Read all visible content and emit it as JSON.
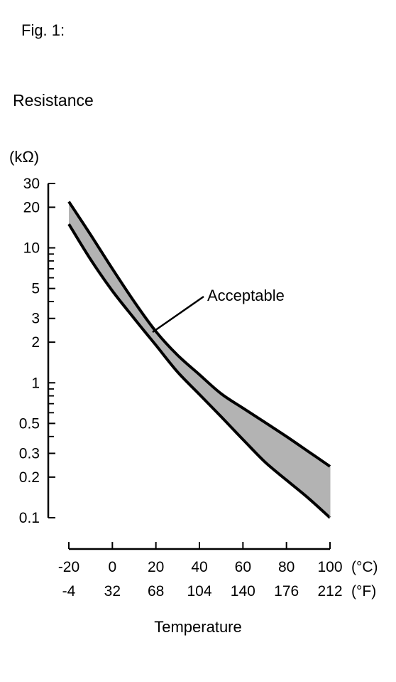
{
  "figure_label": "Fig. 1:",
  "chart_data": {
    "type": "area",
    "title": "Resistance",
    "ylabel": "(kΩ)",
    "xlabel": "Temperature",
    "yscale": "log",
    "ylim": [
      0.1,
      30
    ],
    "xlim": [
      -20,
      100
    ],
    "x_unit_c": "(°C)",
    "x_unit_f": "(°F)",
    "x_ticks_c": [
      "-20",
      "0",
      "20",
      "40",
      "60",
      "80",
      "100"
    ],
    "x_ticks_f": [
      "-4",
      "32",
      "68",
      "104",
      "140",
      "176",
      "212"
    ],
    "y_ticks": [
      "0.1",
      "0.2",
      "0.3",
      "0.5",
      "1",
      "2",
      "3",
      "5",
      "10",
      "20",
      "30"
    ],
    "grid": false,
    "annotation": "Acceptable",
    "series": [
      {
        "x": [
          -20,
          -10,
          0,
          10,
          20,
          30,
          40,
          50,
          60,
          70,
          80,
          90,
          100
        ],
        "values": [
          22,
          12.5,
          7.0,
          4.0,
          2.4,
          1.6,
          1.15,
          0.83,
          0.65,
          0.51,
          0.4,
          0.31,
          0.24
        ]
      },
      {
        "x": [
          -20,
          -10,
          0,
          10,
          20,
          30,
          40,
          50,
          60,
          70,
          80,
          90,
          100
        ],
        "values": [
          15,
          8.2,
          4.8,
          3.0,
          1.9,
          1.2,
          0.82,
          0.56,
          0.38,
          0.26,
          0.19,
          0.14,
          0.1
        ]
      }
    ],
    "colors": {
      "band": "#b3b3b3",
      "line": "#000000"
    }
  }
}
